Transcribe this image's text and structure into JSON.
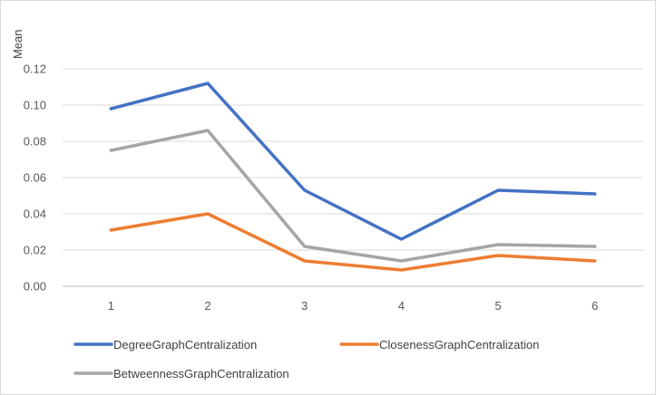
{
  "chart_data": {
    "type": "line",
    "title": "",
    "xlabel": "",
    "ylabel": "Mean",
    "categories": [
      "1",
      "2",
      "3",
      "4",
      "5",
      "6"
    ],
    "ylim": [
      0,
      0.12
    ],
    "yticks": [
      "0.00",
      "0.02",
      "0.04",
      "0.06",
      "0.08",
      "0.10",
      "0.12"
    ],
    "grid": true,
    "legend_position": "bottom",
    "series": [
      {
        "name": "DegreeGraphCentralization",
        "color": "#4472C4",
        "values": [
          0.098,
          0.112,
          0.053,
          0.026,
          0.053,
          0.051
        ]
      },
      {
        "name": "ClosenessGraphCentralization",
        "color": "#ED7D31",
        "values": [
          0.031,
          0.04,
          0.014,
          0.009,
          0.017,
          0.014
        ]
      },
      {
        "name": "BetweennessGraphCentralization",
        "color": "#A5A5A5",
        "values": [
          0.075,
          0.086,
          0.022,
          0.014,
          0.023,
          0.022
        ]
      }
    ]
  }
}
